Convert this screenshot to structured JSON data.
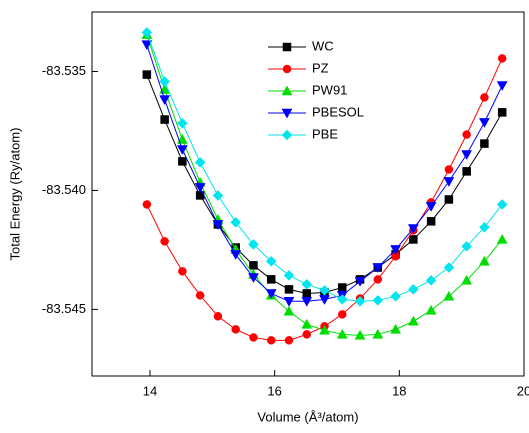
{
  "chart_data": {
    "type": "line",
    "x_label": "Volume (Å³/atom)",
    "y_label": "Total Energy (Ry/atom)",
    "x": [
      13.95,
      14.235,
      14.52,
      14.805,
      15.09,
      15.375,
      15.66,
      15.945,
      16.23,
      16.515,
      16.8,
      17.085,
      17.37,
      17.655,
      17.94,
      18.225,
      18.51,
      18.795,
      19.08,
      19.365,
      19.65
    ],
    "series": [
      {
        "name": "WC",
        "color": "#000000",
        "marker": "square",
        "values": [
          -83.53513,
          -83.53702,
          -83.53878,
          -83.54021,
          -83.54143,
          -83.5424,
          -83.54315,
          -83.54374,
          -83.54416,
          -83.54433,
          -83.54429,
          -83.54408,
          -83.54374,
          -83.54324,
          -83.54269,
          -83.54206,
          -83.5413,
          -83.54038,
          -83.5392,
          -83.53803,
          -83.53672
        ]
      },
      {
        "name": "PZ",
        "color": "#ff0000",
        "marker": "circle",
        "values": [
          -83.54059,
          -83.54214,
          -83.5434,
          -83.54441,
          -83.54529,
          -83.54584,
          -83.54618,
          -83.5463,
          -83.5463,
          -83.54605,
          -83.54571,
          -83.54521,
          -83.54454,
          -83.54374,
          -83.54277,
          -83.54168,
          -83.5405,
          -83.53912,
          -83.53765,
          -83.53609,
          -83.53445
        ]
      },
      {
        "name": "PW91",
        "color": "#00dd00",
        "marker": "triangle-up",
        "values": [
          -83.53345,
          -83.53576,
          -83.53786,
          -83.53966,
          -83.54122,
          -83.54248,
          -83.54353,
          -83.54441,
          -83.54508,
          -83.54563,
          -83.54588,
          -83.54605,
          -83.54609,
          -83.54605,
          -83.54584,
          -83.5455,
          -83.54504,
          -83.54445,
          -83.54378,
          -83.54298,
          -83.54206
        ]
      },
      {
        "name": "PBESOL",
        "color": "#0000ff",
        "marker": "triangle-down",
        "values": [
          -83.53387,
          -83.53618,
          -83.53828,
          -83.53987,
          -83.54143,
          -83.54269,
          -83.54366,
          -83.54433,
          -83.54466,
          -83.54466,
          -83.54458,
          -83.54441,
          -83.54382,
          -83.54324,
          -83.54248,
          -83.5416,
          -83.54067,
          -83.53962,
          -83.53849,
          -83.53714,
          -83.53559
        ]
      },
      {
        "name": "PBE",
        "color": "#00e5ee",
        "marker": "diamond",
        "values": [
          -83.53336,
          -83.53542,
          -83.53718,
          -83.53882,
          -83.54021,
          -83.54134,
          -83.54227,
          -83.54298,
          -83.54357,
          -83.54395,
          -83.5442,
          -83.54458,
          -83.54466,
          -83.54462,
          -83.54445,
          -83.54416,
          -83.54378,
          -83.54324,
          -83.54235,
          -83.54155,
          -83.54059
        ]
      }
    ],
    "xlim": [
      13.07,
      20
    ],
    "xticks": [
      14,
      16,
      18,
      20
    ],
    "ylim": [
      -83.5478,
      -83.5325
    ],
    "yticks": [
      -83.535,
      {
        "value": -83.54,
        "label": "-83.540"
      },
      -83.545
    ],
    "legend": "upper center"
  }
}
